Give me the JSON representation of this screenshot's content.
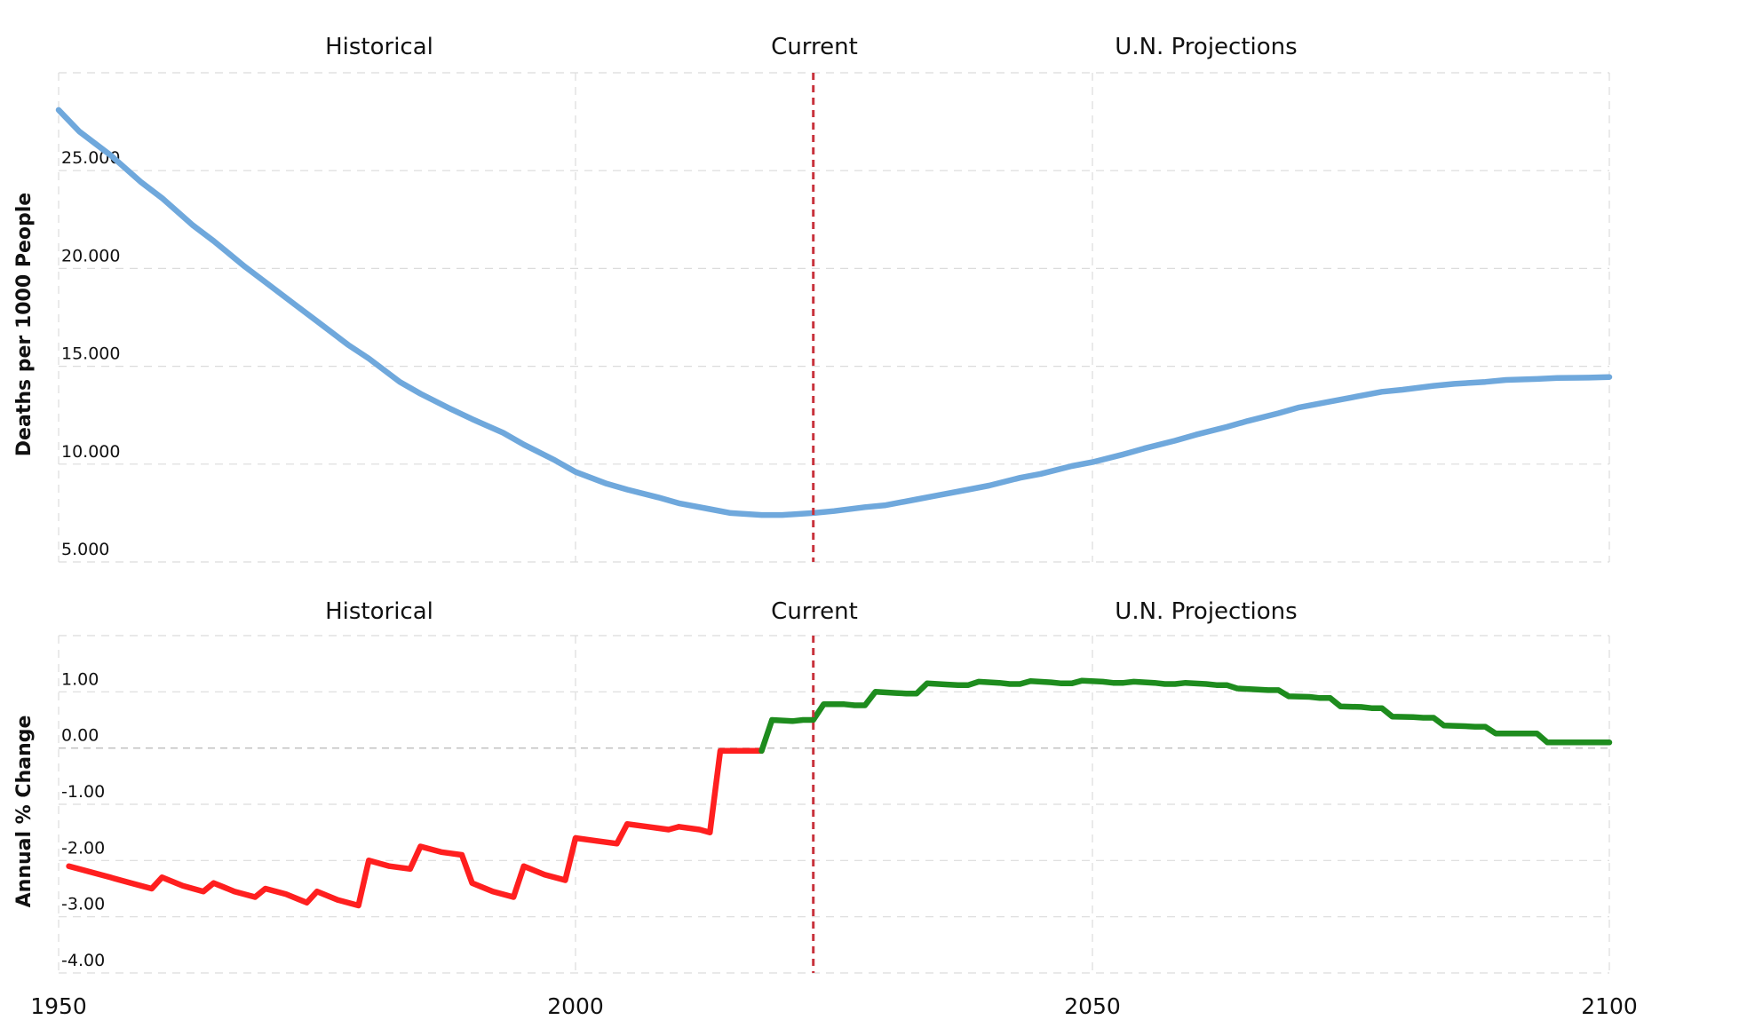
{
  "chart_data": [
    {
      "type": "line",
      "ylabel": "Deaths per 1000 People",
      "ylim": [
        5,
        30
      ],
      "yticks": [
        5,
        10,
        15,
        20,
        25
      ],
      "ytick_labels": [
        "5.000",
        "10.000",
        "15.000",
        "20.000",
        "25.000"
      ],
      "xlim": [
        1950,
        2100
      ],
      "section_labels": [
        "Historical",
        "Current",
        "U.N. Projections"
      ],
      "current_year": 2023,
      "grid": true,
      "series": [
        {
          "color": "#6fa8dc",
          "x": [
            1950,
            1952,
            1955,
            1958,
            1960,
            1963,
            1965,
            1968,
            1970,
            1973,
            1975,
            1978,
            1980,
            1983,
            1985,
            1988,
            1990,
            1993,
            1995,
            1998,
            2000,
            2003,
            2005,
            2008,
            2010,
            2013,
            2015,
            2018,
            2020,
            2023,
            2025,
            2028,
            2030,
            2033,
            2035,
            2038,
            2040,
            2043,
            2045,
            2048,
            2050,
            2053,
            2055,
            2058,
            2060,
            2063,
            2065,
            2068,
            2070,
            2073,
            2075,
            2078,
            2080,
            2083,
            2085,
            2088,
            2090,
            2093,
            2095,
            2098,
            2100
          ],
          "values": [
            28.1,
            27.0,
            25.8,
            24.4,
            23.6,
            22.2,
            21.4,
            20.1,
            19.3,
            18.1,
            17.3,
            16.1,
            15.4,
            14.2,
            13.6,
            12.8,
            12.3,
            11.6,
            11.0,
            10.2,
            9.6,
            9.0,
            8.7,
            8.3,
            8.0,
            7.7,
            7.5,
            7.4,
            7.4,
            7.5,
            7.6,
            7.8,
            7.9,
            8.2,
            8.4,
            8.7,
            8.9,
            9.3,
            9.5,
            9.9,
            10.1,
            10.5,
            10.8,
            11.2,
            11.5,
            11.9,
            12.2,
            12.6,
            12.9,
            13.2,
            13.4,
            13.7,
            13.8,
            14.0,
            14.1,
            14.2,
            14.3,
            14.35,
            14.4,
            14.42,
            14.45
          ]
        }
      ]
    },
    {
      "type": "line",
      "ylabel": "Annual % Change",
      "ylim": [
        -4,
        2
      ],
      "yticks": [
        -4,
        -3,
        -2,
        -1,
        0,
        1
      ],
      "ytick_labels": [
        "-4.00",
        "-3.00",
        "-2.00",
        "-1.00",
        "0.00",
        "1.00"
      ],
      "xlim": [
        1950,
        2100
      ],
      "xticks": [
        1950,
        2000,
        2050,
        2100
      ],
      "section_labels": [
        "Historical",
        "Current",
        "U.N. Projections"
      ],
      "current_year": 2023,
      "grid": true,
      "series": [
        {
          "color": "#ff1f1f",
          "x": [
            1951,
            1953,
            1955,
            1957,
            1959,
            1960,
            1962,
            1964,
            1965,
            1967,
            1969,
            1970,
            1972,
            1974,
            1975,
            1977,
            1979,
            1980,
            1982,
            1984,
            1985,
            1987,
            1989,
            1990,
            1992,
            1994,
            1995,
            1997,
            1999,
            2000,
            2002,
            2004,
            2005,
            2007,
            2009,
            2010,
            2012,
            2013,
            2014,
            2015,
            2017,
            2018
          ],
          "values": [
            -2.1,
            -2.2,
            -2.3,
            -2.4,
            -2.5,
            -2.3,
            -2.45,
            -2.55,
            -2.4,
            -2.55,
            -2.65,
            -2.5,
            -2.6,
            -2.75,
            -2.55,
            -2.7,
            -2.8,
            -2.0,
            -2.1,
            -2.15,
            -1.75,
            -1.85,
            -1.9,
            -2.4,
            -2.55,
            -2.65,
            -2.1,
            -2.25,
            -2.35,
            -1.6,
            -1.65,
            -1.7,
            -1.35,
            -1.4,
            -1.45,
            -1.4,
            -1.45,
            -1.5,
            -0.05,
            -0.05,
            -0.05,
            -0.05
          ]
        },
        {
          "color": "#1e8c1e",
          "x": [
            2018,
            2019,
            2021,
            2022,
            2023,
            2024,
            2026,
            2027,
            2028,
            2029,
            2031,
            2032,
            2033,
            2034,
            2036,
            2037,
            2038,
            2039,
            2041,
            2042,
            2043,
            2044,
            2046,
            2047,
            2048,
            2049,
            2051,
            2052,
            2053,
            2054,
            2056,
            2057,
            2058,
            2059,
            2061,
            2062,
            2063,
            2064,
            2066,
            2067,
            2068,
            2069,
            2071,
            2072,
            2073,
            2074,
            2076,
            2077,
            2078,
            2079,
            2081,
            2082,
            2083,
            2084,
            2086,
            2087,
            2088,
            2089,
            2091,
            2092,
            2093,
            2094,
            2096,
            2097,
            2098,
            2099,
            2100
          ],
          "values": [
            -0.05,
            0.5,
            0.48,
            0.5,
            0.5,
            0.78,
            0.78,
            0.76,
            0.76,
            1.0,
            0.98,
            0.97,
            0.97,
            1.15,
            1.13,
            1.12,
            1.12,
            1.18,
            1.16,
            1.14,
            1.14,
            1.19,
            1.17,
            1.15,
            1.15,
            1.2,
            1.18,
            1.16,
            1.16,
            1.18,
            1.16,
            1.14,
            1.14,
            1.16,
            1.14,
            1.12,
            1.12,
            1.06,
            1.04,
            1.03,
            1.03,
            0.92,
            0.91,
            0.89,
            0.89,
            0.74,
            0.73,
            0.71,
            0.71,
            0.56,
            0.55,
            0.54,
            0.54,
            0.4,
            0.39,
            0.38,
            0.38,
            0.26,
            0.26,
            0.26,
            0.26,
            0.1,
            0.1,
            0.1,
            0.1,
            0.1,
            0.1
          ]
        }
      ]
    }
  ]
}
